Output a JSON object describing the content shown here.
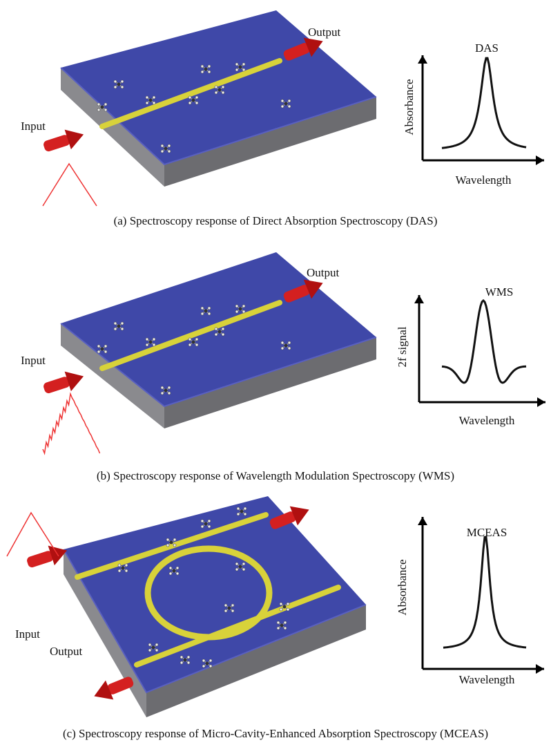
{
  "panels": [
    {
      "input": "Input",
      "output": "Output",
      "graph": {
        "label": "DAS",
        "y_axis": "Absorbance",
        "x_axis": "Wavelength"
      },
      "caption": "(a) Spectroscopy response of Direct Absorption Spectroscopy (DAS)"
    },
    {
      "input": "Input",
      "output": "Output",
      "graph": {
        "label": "WMS",
        "y_axis": "2f signal",
        "x_axis": "Wavelength"
      },
      "caption": "(b) Spectroscopy response of Wavelength Modulation Spectroscopy (WMS)"
    },
    {
      "input": "Input",
      "output": "Output",
      "graph": {
        "label": "MCEAS",
        "y_axis": "Absorbance",
        "x_axis": "Wavelength"
      },
      "caption": "(c) Spectroscopy response of Micro-Cavity-Enhanced Absorption Spectroscopy (MCEAS)"
    }
  ]
}
